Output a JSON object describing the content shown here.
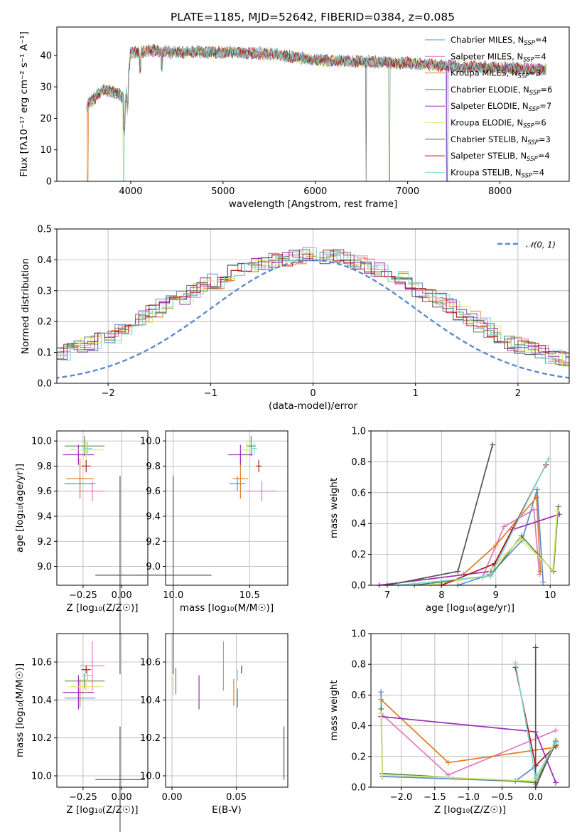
{
  "colors": {
    "Chabrier MILES": "#5b8bd0",
    "Salpeter MILES": "#e377c2",
    "Kroupa MILES": "#e07b1f",
    "Chabrier ELODIE": "#5a8a4a",
    "Salpeter ELODIE": "#9b30b3",
    "Kroupa ELODIE": "#d9e86a",
    "Chabrier STELIB": "#555555",
    "Salpeter STELIB": "#b01818",
    "Kroupa STELIB": "#7ed8d8",
    "gaussian": "#5b8bd0"
  },
  "chart_data": [
    {
      "id": "spectrum",
      "type": "line",
      "title": "PLATE=1185, MJD=52642, FIBERID=0384, z=0.085",
      "xlabel": "wavelength [Angstrom, rest frame]",
      "ylabel": "Flux [fλ10⁻¹⁷ erg cm⁻² s⁻¹ A⁻¹]",
      "xlim": [
        3200,
        8750
      ],
      "ylim": [
        0,
        49
      ],
      "xticks": [
        4000,
        5000,
        6000,
        7000,
        8000
      ],
      "yticks": [
        0,
        10,
        20,
        30,
        40
      ],
      "grid": false,
      "legend_position": "top-right",
      "series": [
        {
          "name": "Chabrier MILES",
          "nssp": "4"
        },
        {
          "name": "Salpeter MILES",
          "nssp": "4"
        },
        {
          "name": "Kroupa MILES",
          "nssp": "3"
        },
        {
          "name": "Chabrier ELODIE",
          "nssp": "6"
        },
        {
          "name": "Salpeter ELODIE",
          "nssp": "7"
        },
        {
          "name": "Kroupa ELODIE",
          "nssp": "6"
        },
        {
          "name": "Chabrier STELIB",
          "nssp": "3"
        },
        {
          "name": "Salpeter STELIB",
          "nssp": "4"
        },
        {
          "name": "Kroupa STELIB",
          "nssp": "4"
        }
      ],
      "continuum": [
        [
          3520,
          24
        ],
        [
          3700,
          29
        ],
        [
          3850,
          28
        ],
        [
          3950,
          26
        ],
        [
          4000,
          41
        ],
        [
          4200,
          41.5
        ],
        [
          4500,
          41
        ],
        [
          5000,
          41
        ],
        [
          5500,
          40.5
        ],
        [
          6000,
          38.5
        ],
        [
          6500,
          38
        ],
        [
          7000,
          37.5
        ],
        [
          7500,
          36.5
        ],
        [
          8000,
          36
        ],
        [
          8500,
          35.5
        ]
      ]
    },
    {
      "id": "residuals",
      "type": "step",
      "xlabel": "(data-model)/error",
      "ylabel": "Normed distribution",
      "xlim": [
        -2.5,
        2.5
      ],
      "ylim": [
        0,
        0.5
      ],
      "xticks": [
        -2,
        -1,
        0,
        1,
        2
      ],
      "yticks": [
        0.0,
        0.1,
        0.2,
        0.3,
        0.4,
        0.5
      ],
      "grid": true,
      "legend_position": "top-right",
      "legend": "𝒩(0, 1)",
      "bin_width": 0.1,
      "mean_hist": [
        0.02,
        0.02,
        0.03,
        0.03,
        0.04,
        0.05,
        0.06,
        0.07,
        0.08,
        0.09,
        0.1,
        0.11,
        0.12,
        0.13,
        0.14,
        0.15,
        0.17,
        0.19,
        0.21,
        0.23,
        0.25,
        0.27,
        0.28,
        0.3,
        0.32,
        0.33,
        0.35,
        0.36,
        0.37,
        0.38,
        0.39,
        0.4,
        0.4,
        0.41,
        0.42,
        0.42,
        0.41,
        0.41,
        0.4,
        0.39,
        0.38,
        0.37,
        0.35,
        0.34,
        0.32,
        0.3,
        0.28,
        0.27,
        0.25,
        0.23,
        0.21,
        0.19,
        0.17,
        0.15,
        0.13,
        0.12,
        0.11,
        0.1,
        0.09,
        0.08,
        0.07,
        0.06,
        0.05,
        0.05,
        0.04,
        0.04,
        0.03,
        0.03,
        0.03,
        0.03
      ]
    },
    {
      "id": "z-age",
      "type": "errorbar",
      "xlabel": "Z [log₁₀(Z/Z☉)]",
      "ylabel": "age  [log₁₀(age/yr)]",
      "xlim": [
        -0.42,
        0.17
      ],
      "ylim": [
        8.85,
        10.08
      ],
      "xticks": [
        -0.25,
        0.0
      ],
      "yticks": [
        9.0,
        9.2,
        9.4,
        9.6,
        9.8,
        10.0
      ],
      "grid": true,
      "points": [
        {
          "s": "Chabrier MILES",
          "x": -0.27,
          "xe": 0.1,
          "y": 9.66,
          "ye": 0.06
        },
        {
          "s": "Salpeter MILES",
          "x": -0.19,
          "xe": 0.08,
          "y": 9.6,
          "ye": 0.08
        },
        {
          "s": "Kroupa MILES",
          "x": -0.27,
          "xe": 0.09,
          "y": 9.7,
          "ye": 0.16
        },
        {
          "s": "Chabrier ELODIE",
          "x": -0.24,
          "xe": 0.13,
          "y": 9.96,
          "ye": 0.08
        },
        {
          "s": "Salpeter ELODIE",
          "x": -0.28,
          "xe": 0.1,
          "y": 9.89,
          "ye": 0.08
        },
        {
          "s": "Kroupa ELODIE",
          "x": -0.23,
          "xe": 0.11,
          "y": 9.93,
          "ye": 0.07
        },
        {
          "s": "Chabrier STELIB",
          "x": -0.01,
          "xe": 0.16,
          "y": 8.93,
          "ye": 0.79
        },
        {
          "s": "Salpeter STELIB",
          "x": -0.23,
          "xe": 0.03,
          "y": 9.8,
          "ye": 0.05
        },
        {
          "s": "Kroupa STELIB",
          "x": -0.22,
          "xe": 0.03,
          "y": 9.94,
          "ye": 0.05
        }
      ]
    },
    {
      "id": "mass-age",
      "type": "errorbar",
      "xlabel": "mass [log₁₀(M/M☉)]",
      "ylabel": "",
      "xlim": [
        9.95,
        10.75
      ],
      "ylim": [
        8.85,
        10.08
      ],
      "xticks": [
        10.0,
        10.5
      ],
      "yticks": [
        9.0,
        9.2,
        9.4,
        9.6,
        9.8,
        10.0
      ],
      "grid": true,
      "points": [
        {
          "s": "Chabrier MILES",
          "x": 10.42,
          "xe": 0.05,
          "y": 9.66,
          "ye": 0.06
        },
        {
          "s": "Salpeter MILES",
          "x": 10.58,
          "xe": 0.1,
          "y": 9.6,
          "ye": 0.08
        },
        {
          "s": "Kroupa MILES",
          "x": 10.44,
          "xe": 0.05,
          "y": 9.7,
          "ye": 0.16
        },
        {
          "s": "Chabrier ELODIE",
          "x": 10.51,
          "xe": 0.03,
          "y": 9.96,
          "ye": 0.08
        },
        {
          "s": "Salpeter ELODIE",
          "x": 10.44,
          "xe": 0.08,
          "y": 9.89,
          "ye": 0.08
        },
        {
          "s": "Kroupa ELODIE",
          "x": 10.48,
          "xe": 0.04,
          "y": 9.93,
          "ye": 0.07
        },
        {
          "s": "Chabrier STELIB",
          "x": 10.0,
          "xe": 0.25,
          "y": 8.93,
          "ye": 0.79
        },
        {
          "s": "Salpeter STELIB",
          "x": 10.56,
          "xe": 0.02,
          "y": 9.8,
          "ye": 0.05
        },
        {
          "s": "Kroupa STELIB",
          "x": 10.53,
          "xe": 0.02,
          "y": 9.94,
          "ye": 0.05
        }
      ]
    },
    {
      "id": "age-weight",
      "type": "line",
      "xlabel": "age  [log₁₀(age/yr)]",
      "ylabel": "mass weight",
      "xlim": [
        6.7,
        10.35
      ],
      "ylim": [
        0,
        1
      ],
      "xticks": [
        7,
        8,
        9,
        10
      ],
      "yticks": [
        0.0,
        0.2,
        0.4,
        0.6,
        0.8,
        1.0
      ],
      "grid": true,
      "series": [
        {
          "name": "Chabrier MILES",
          "pts": [
            [
              8.3,
              0.0
            ],
            [
              8.9,
              0.07
            ],
            [
              9.48,
              0.29
            ],
            [
              9.76,
              0.62
            ],
            [
              9.87,
              0.02
            ]
          ]
        },
        {
          "name": "Salpeter MILES",
          "pts": [
            [
              8.75,
              0.05
            ],
            [
              9.15,
              0.38
            ],
            [
              9.7,
              0.49
            ],
            [
              9.8,
              0.07
            ]
          ]
        },
        {
          "name": "Kroupa MILES",
          "pts": [
            [
              8.4,
              0.07
            ],
            [
              9.0,
              0.26
            ],
            [
              9.75,
              0.57
            ],
            [
              9.82,
              0.09
            ]
          ]
        },
        {
          "name": "Chabrier ELODIE",
          "pts": [
            [
              7.5,
              0.0
            ],
            [
              8.9,
              0.06
            ],
            [
              9.47,
              0.32
            ],
            [
              10.06,
              0.09
            ],
            [
              10.15,
              0.51
            ]
          ]
        },
        {
          "name": "Salpeter ELODIE",
          "pts": [
            [
              6.85,
              0.0
            ],
            [
              8.9,
              0.09
            ],
            [
              9.3,
              0.36
            ],
            [
              10.17,
              0.46
            ]
          ]
        },
        {
          "name": "Kroupa ELODIE",
          "pts": [
            [
              7.8,
              0.0
            ],
            [
              8.8,
              0.06
            ],
            [
              9.45,
              0.3
            ],
            [
              10.05,
              0.1
            ],
            [
              10.13,
              0.48
            ]
          ]
        },
        {
          "name": "Chabrier STELIB",
          "pts": [
            [
              7.0,
              0.0
            ],
            [
              8.3,
              0.09
            ],
            [
              8.94,
              0.91
            ]
          ]
        },
        {
          "name": "Salpeter STELIB",
          "pts": [
            [
              8.0,
              0.0
            ],
            [
              8.98,
              0.14
            ],
            [
              9.92,
              0.78
            ]
          ]
        },
        {
          "name": "Kroupa STELIB",
          "pts": [
            [
              7.2,
              0.0
            ],
            [
              8.9,
              0.06
            ],
            [
              9.97,
              0.82
            ]
          ]
        }
      ]
    },
    {
      "id": "z-mass",
      "type": "errorbar",
      "xlabel": "Z [log₁₀(Z/Z☉)]",
      "ylabel": "mass [log₁₀(M/M☉)]",
      "xlim": [
        -0.42,
        0.17
      ],
      "ylim": [
        9.94,
        10.75
      ],
      "xticks": [
        -0.25,
        0.0
      ],
      "yticks": [
        10.0,
        10.2,
        10.4,
        10.6
      ],
      "grid": true,
      "points": [
        {
          "s": "Chabrier MILES",
          "x": -0.27,
          "xe": 0.1,
          "y": 10.41,
          "ye": 0.05
        },
        {
          "s": "Salpeter MILES",
          "x": -0.19,
          "xe": 0.08,
          "y": 10.58,
          "ye": 0.13
        },
        {
          "s": "Kroupa MILES",
          "x": -0.27,
          "xe": 0.09,
          "y": 10.44,
          "ye": 0.07
        },
        {
          "s": "Chabrier ELODIE",
          "x": -0.24,
          "xe": 0.13,
          "y": 10.5,
          "ye": 0.04
        },
        {
          "s": "Salpeter ELODIE",
          "x": -0.28,
          "xe": 0.1,
          "y": 10.44,
          "ye": 0.09
        },
        {
          "s": "Kroupa ELODIE",
          "x": -0.23,
          "xe": 0.11,
          "y": 10.47,
          "ye": 0.04
        },
        {
          "s": "Chabrier STELIB",
          "x": -0.01,
          "xe": 0.16,
          "y": 9.98,
          "ye": 0.28
        },
        {
          "s": "Salpeter STELIB",
          "x": -0.23,
          "xe": 0.03,
          "y": 10.56,
          "ye": 0.02
        },
        {
          "s": "Kroupa STELIB",
          "x": -0.22,
          "xe": 0.03,
          "y": 10.53,
          "ye": 0.03
        }
      ]
    },
    {
      "id": "ebv-mass",
      "type": "errorbar",
      "xlabel": "E(B-V)",
      "ylabel": "",
      "xlim": [
        -0.005,
        0.09
      ],
      "ylim": [
        9.94,
        10.75
      ],
      "xticks": [
        0.0,
        0.05
      ],
      "yticks": [
        10.0,
        10.2,
        10.4,
        10.6
      ],
      "grid": true,
      "points": [
        {
          "s": "Chabrier MILES",
          "x": 0.051,
          "xe": 0.0,
          "y": 10.41,
          "ye": 0.05
        },
        {
          "s": "Salpeter MILES",
          "x": 0.04,
          "xe": 0.0,
          "y": 10.58,
          "ye": 0.13
        },
        {
          "s": "Kroupa MILES",
          "x": 0.048,
          "xe": 0.0,
          "y": 10.44,
          "ye": 0.07
        },
        {
          "s": "Chabrier ELODIE",
          "x": 0.003,
          "xe": 0.0,
          "y": 10.5,
          "ye": 0.07
        },
        {
          "s": "Salpeter ELODIE",
          "x": 0.021,
          "xe": 0.0,
          "y": 10.44,
          "ye": 0.09
        },
        {
          "s": "Kroupa ELODIE",
          "x": 0.001,
          "xe": 0.0,
          "y": 10.47,
          "ye": 0.05
        },
        {
          "s": "Chabrier STELIB",
          "x": 0.087,
          "xe": 0.0,
          "y": 10.12,
          "ye": 0.14
        },
        {
          "s": "Salpeter STELIB",
          "x": 0.054,
          "xe": 0.0,
          "y": 10.56,
          "ye": 0.02
        },
        {
          "s": "Kroupa STELIB",
          "x": 0.051,
          "xe": 0.0,
          "y": 10.53,
          "ye": 0.03
        }
      ]
    },
    {
      "id": "z-weight",
      "type": "line",
      "xlabel": "Z [log₁₀(Z/Z☉)]",
      "ylabel": "mass weight",
      "xlim": [
        -2.45,
        0.5
      ],
      "ylim": [
        0,
        1
      ],
      "xticks": [
        -2.0,
        -1.5,
        -1.0,
        -0.5,
        0.0
      ],
      "yticks": [
        0.0,
        0.2,
        0.4,
        0.6,
        0.8,
        1.0
      ],
      "grid": true,
      "series": [
        {
          "name": "Chabrier MILES",
          "pts": [
            [
              -2.3,
              0.62
            ],
            [
              -2.28,
              0.07
            ],
            [
              -0.3,
              0.04
            ],
            [
              -0.02,
              0.13
            ],
            [
              0.0,
              0.02
            ]
          ]
        },
        {
          "name": "Salpeter MILES",
          "pts": [
            [
              -2.3,
              0.48
            ],
            [
              -1.3,
              0.08
            ],
            [
              0.3,
              0.37
            ]
          ]
        },
        {
          "name": "Kroupa MILES",
          "pts": [
            [
              -2.3,
              0.57
            ],
            [
              -1.3,
              0.16
            ],
            [
              0.3,
              0.26
            ]
          ]
        },
        {
          "name": "Chabrier ELODIE",
          "pts": [
            [
              -2.3,
              0.51
            ],
            [
              -2.28,
              0.09
            ],
            [
              0.0,
              0.03
            ],
            [
              0.3,
              0.28
            ]
          ]
        },
        {
          "name": "Salpeter ELODIE",
          "pts": [
            [
              -2.3,
              0.46
            ],
            [
              0.0,
              0.36
            ],
            [
              0.3,
              0.03
            ]
          ]
        },
        {
          "name": "Kroupa ELODIE",
          "pts": [
            [
              -2.3,
              0.48
            ],
            [
              -2.28,
              0.08
            ],
            [
              0.0,
              0.04
            ],
            [
              0.3,
              0.31
            ]
          ]
        },
        {
          "name": "Chabrier STELIB",
          "pts": [
            [
              0.0,
              0.91
            ],
            [
              0.0,
              0.0
            ],
            [
              0.3,
              0.3
            ]
          ]
        },
        {
          "name": "Salpeter STELIB",
          "pts": [
            [
              -0.3,
              0.78
            ],
            [
              0.0,
              0.14
            ],
            [
              0.3,
              0.27
            ]
          ]
        },
        {
          "name": "Kroupa STELIB",
          "pts": [
            [
              -0.3,
              0.81
            ],
            [
              0.0,
              0.06
            ],
            [
              0.3,
              0.29
            ]
          ]
        }
      ]
    }
  ]
}
